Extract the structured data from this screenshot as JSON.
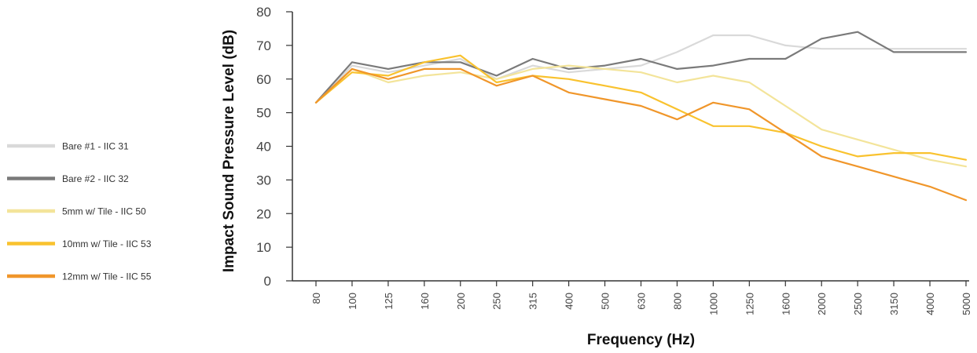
{
  "chart_data": {
    "type": "line",
    "title": "",
    "xlabel": "Frequency (Hz)",
    "ylabel": "Impact Sound Pressure Level (dB)",
    "ylim": [
      0,
      80
    ],
    "yticks": [
      0,
      10,
      20,
      30,
      40,
      50,
      60,
      70,
      80
    ],
    "categories": [
      "80",
      "100",
      "125",
      "160",
      "200",
      "250",
      "315",
      "400",
      "500",
      "630",
      "800",
      "1000",
      "1250",
      "1600",
      "2000",
      "2500",
      "3150",
      "4000",
      "5000"
    ],
    "grid": false,
    "legend_position": "left",
    "series": [
      {
        "name": "Bare #1 - IIC 31",
        "color": "#d9d9d9",
        "values": [
          53,
          64,
          62,
          64,
          66,
          60,
          64,
          62,
          63,
          64,
          68,
          73,
          73,
          70,
          69,
          69,
          69,
          69,
          69
        ]
      },
      {
        "name": "Bare #2 - IIC 32",
        "color": "#7a7a7a",
        "values": [
          53,
          65,
          63,
          65,
          65,
          61,
          66,
          63,
          64,
          66,
          63,
          64,
          66,
          66,
          72,
          74,
          68,
          68,
          68
        ]
      },
      {
        "name": "5mm w/ Tile - IIC 50",
        "color": "#f3e49a",
        "values": [
          53,
          63,
          59,
          61,
          62,
          60,
          63,
          64,
          63,
          62,
          59,
          61,
          59,
          52,
          45,
          42,
          39,
          36,
          34
        ]
      },
      {
        "name": "10mm w/ Tile - IIC 53",
        "color": "#f9c22e",
        "values": [
          53,
          62,
          61,
          65,
          67,
          59,
          61,
          60,
          58,
          56,
          51,
          46,
          46,
          44,
          40,
          37,
          38,
          38,
          36
        ]
      },
      {
        "name": "12mm w/ Tile - IIC 55",
        "color": "#f0962a",
        "values": [
          53,
          63,
          60,
          63,
          63,
          58,
          61,
          56,
          54,
          52,
          48,
          53,
          51,
          44,
          37,
          34,
          31,
          28,
          24
        ]
      }
    ]
  }
}
